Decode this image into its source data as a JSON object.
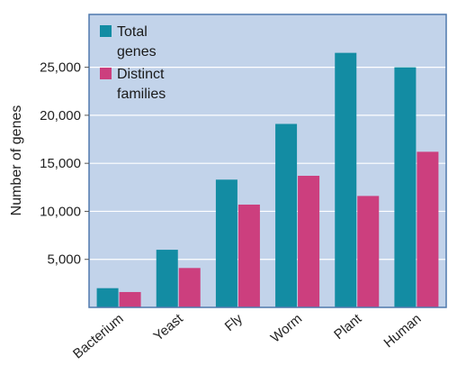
{
  "chart_data": {
    "type": "bar",
    "categories": [
      "Bacterium",
      "Yeast",
      "Fly",
      "Worm",
      "Plant",
      "Human"
    ],
    "series": [
      {
        "name": "Total genes",
        "values": [
          2000,
          6000,
          13300,
          19100,
          26500,
          25000
        ]
      },
      {
        "name": "Distinct families",
        "values": [
          1600,
          4100,
          10700,
          13700,
          11600,
          16200
        ]
      }
    ],
    "ylabel": "Number of genes",
    "xlabel": "",
    "yticks": [
      5000,
      10000,
      15000,
      20000,
      25000
    ],
    "ytick_labels": [
      "5,000",
      "10,000",
      "15,000",
      "20,000",
      "25,000"
    ],
    "ylim": [
      0,
      30500
    ],
    "legend_placement": "top-left",
    "legend_labels": [
      [
        "Total",
        "genes"
      ],
      [
        "Distinct",
        "families"
      ]
    ],
    "grid": "horizontal",
    "colors": {
      "plot_background": "#c2d3ea",
      "plot_border": "#4f79ad",
      "gridline": "#ffffff",
      "Total genes": "#138ca3",
      "Distinct families": "#cc3f7e"
    }
  }
}
